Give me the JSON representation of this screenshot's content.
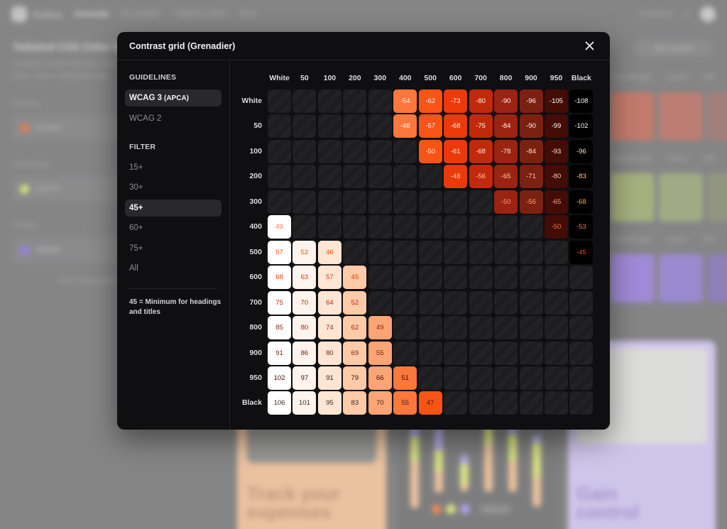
{
  "background": {
    "nav": {
      "brand": "Colors",
      "links": [
        "Generate",
        "My palettes",
        "Tailwind Colors",
        "More"
      ],
      "feedback": "Feedback"
    },
    "page_title": "Tailwind CSS Color Generator",
    "subtitle_line1": "Instantly create stunning color",
    "subtitle_line2": "base color or letting the app",
    "fields": [
      {
        "label": "Primary",
        "value": "#ec6b47",
        "dot": "#ee7a5a"
      },
      {
        "label": "Secondary",
        "value": "#d2f774",
        "dot": "#dcef7a"
      },
      {
        "label": "Tertiary",
        "value": "#9f80e8",
        "dot": "#9b82ee"
      }
    ],
    "more_link": "View combinations",
    "save_button": "Save palette",
    "row_links": [
      "Contrast grid",
      "Export",
      "Edit"
    ],
    "swatch_rows": [
      [
        "#c97a6a",
        "#c27e72",
        "#a57f7a"
      ],
      [
        "#a9b57f",
        "#a4b085",
        "#93987f"
      ],
      [
        "#a38be0",
        "#9f8ad7",
        "#8f7fbd"
      ]
    ],
    "cards": {
      "left_text_line1": "Track your",
      "left_text_line2": "expenses",
      "right_text_line1": "Gain",
      "right_text_line2": "control",
      "chart_button": "Show all"
    }
  },
  "modal": {
    "title": "Contrast grid (Grenadier)",
    "close_icon": "close-icon",
    "guidelines_heading": "GUIDELINES",
    "guidelines": [
      {
        "label": "WCAG 3",
        "suffix": "(APCA)",
        "active": true
      },
      {
        "label": "WCAG 2",
        "suffix": "",
        "active": false
      }
    ],
    "filter_heading": "FILTER",
    "filters": [
      {
        "label": "15+",
        "active": false
      },
      {
        "label": "30+",
        "active": false
      },
      {
        "label": "45+",
        "active": true
      },
      {
        "label": "60+",
        "active": false
      },
      {
        "label": "75+",
        "active": false
      },
      {
        "label": "All",
        "active": false
      }
    ],
    "note": "45 = Minimum for headings and titles"
  },
  "grid": {
    "columns": [
      "White",
      "50",
      "100",
      "200",
      "300",
      "400",
      "500",
      "600",
      "700",
      "800",
      "900",
      "950",
      "Black"
    ],
    "rows": [
      "White",
      "50",
      "100",
      "200",
      "300",
      "400",
      "500",
      "600",
      "700",
      "800",
      "900",
      "950",
      "Black"
    ],
    "swatches": {
      "White": "#ffffff",
      "50": "#fff4ed",
      "100": "#ffe6d4",
      "200": "#fecaa8",
      "300": "#fda474",
      "400": "#fb773c",
      "500": "#f95316",
      "600": "#ea3a0c",
      "700": "#c2290c",
      "800": "#9a2312",
      "900": "#7c2012",
      "950": "#430c07",
      "Black": "#000000"
    },
    "values": [
      [
        null,
        null,
        null,
        null,
        null,
        "-54",
        "-62",
        "-73",
        "-80",
        "-90",
        "-96",
        "-105",
        "-108"
      ],
      [
        null,
        null,
        null,
        null,
        null,
        "-48",
        "-57",
        "-68",
        "-75",
        "-84",
        "-90",
        "-99",
        "-102"
      ],
      [
        null,
        null,
        null,
        null,
        null,
        null,
        "-50",
        "-61",
        "-68",
        "-78",
        "-84",
        "-93",
        "-96"
      ],
      [
        null,
        null,
        null,
        null,
        null,
        null,
        null,
        "-48",
        "-56",
        "-65",
        "-71",
        "-80",
        "-83"
      ],
      [
        null,
        null,
        null,
        null,
        null,
        null,
        null,
        null,
        null,
        "-50",
        "-56",
        "-65",
        "-68"
      ],
      [
        "49",
        null,
        null,
        null,
        null,
        null,
        null,
        null,
        null,
        null,
        null,
        "-50",
        "-53"
      ],
      [
        "57",
        "52",
        "46",
        null,
        null,
        null,
        null,
        null,
        null,
        null,
        null,
        null,
        "-45"
      ],
      [
        "68",
        "63",
        "57",
        "45",
        null,
        null,
        null,
        null,
        null,
        null,
        null,
        null,
        null
      ],
      [
        "75",
        "70",
        "64",
        "52",
        null,
        null,
        null,
        null,
        null,
        null,
        null,
        null,
        null
      ],
      [
        "85",
        "80",
        "74",
        "62",
        "49",
        null,
        null,
        null,
        null,
        null,
        null,
        null,
        null
      ],
      [
        "91",
        "86",
        "80",
        "69",
        "55",
        null,
        null,
        null,
        null,
        null,
        null,
        null,
        null
      ],
      [
        "102",
        "97",
        "91",
        "79",
        "66",
        "51",
        null,
        null,
        null,
        null,
        null,
        null,
        null
      ],
      [
        "106",
        "101",
        "95",
        "83",
        "70",
        "55",
        "47",
        null,
        null,
        null,
        null,
        null,
        null
      ]
    ]
  }
}
